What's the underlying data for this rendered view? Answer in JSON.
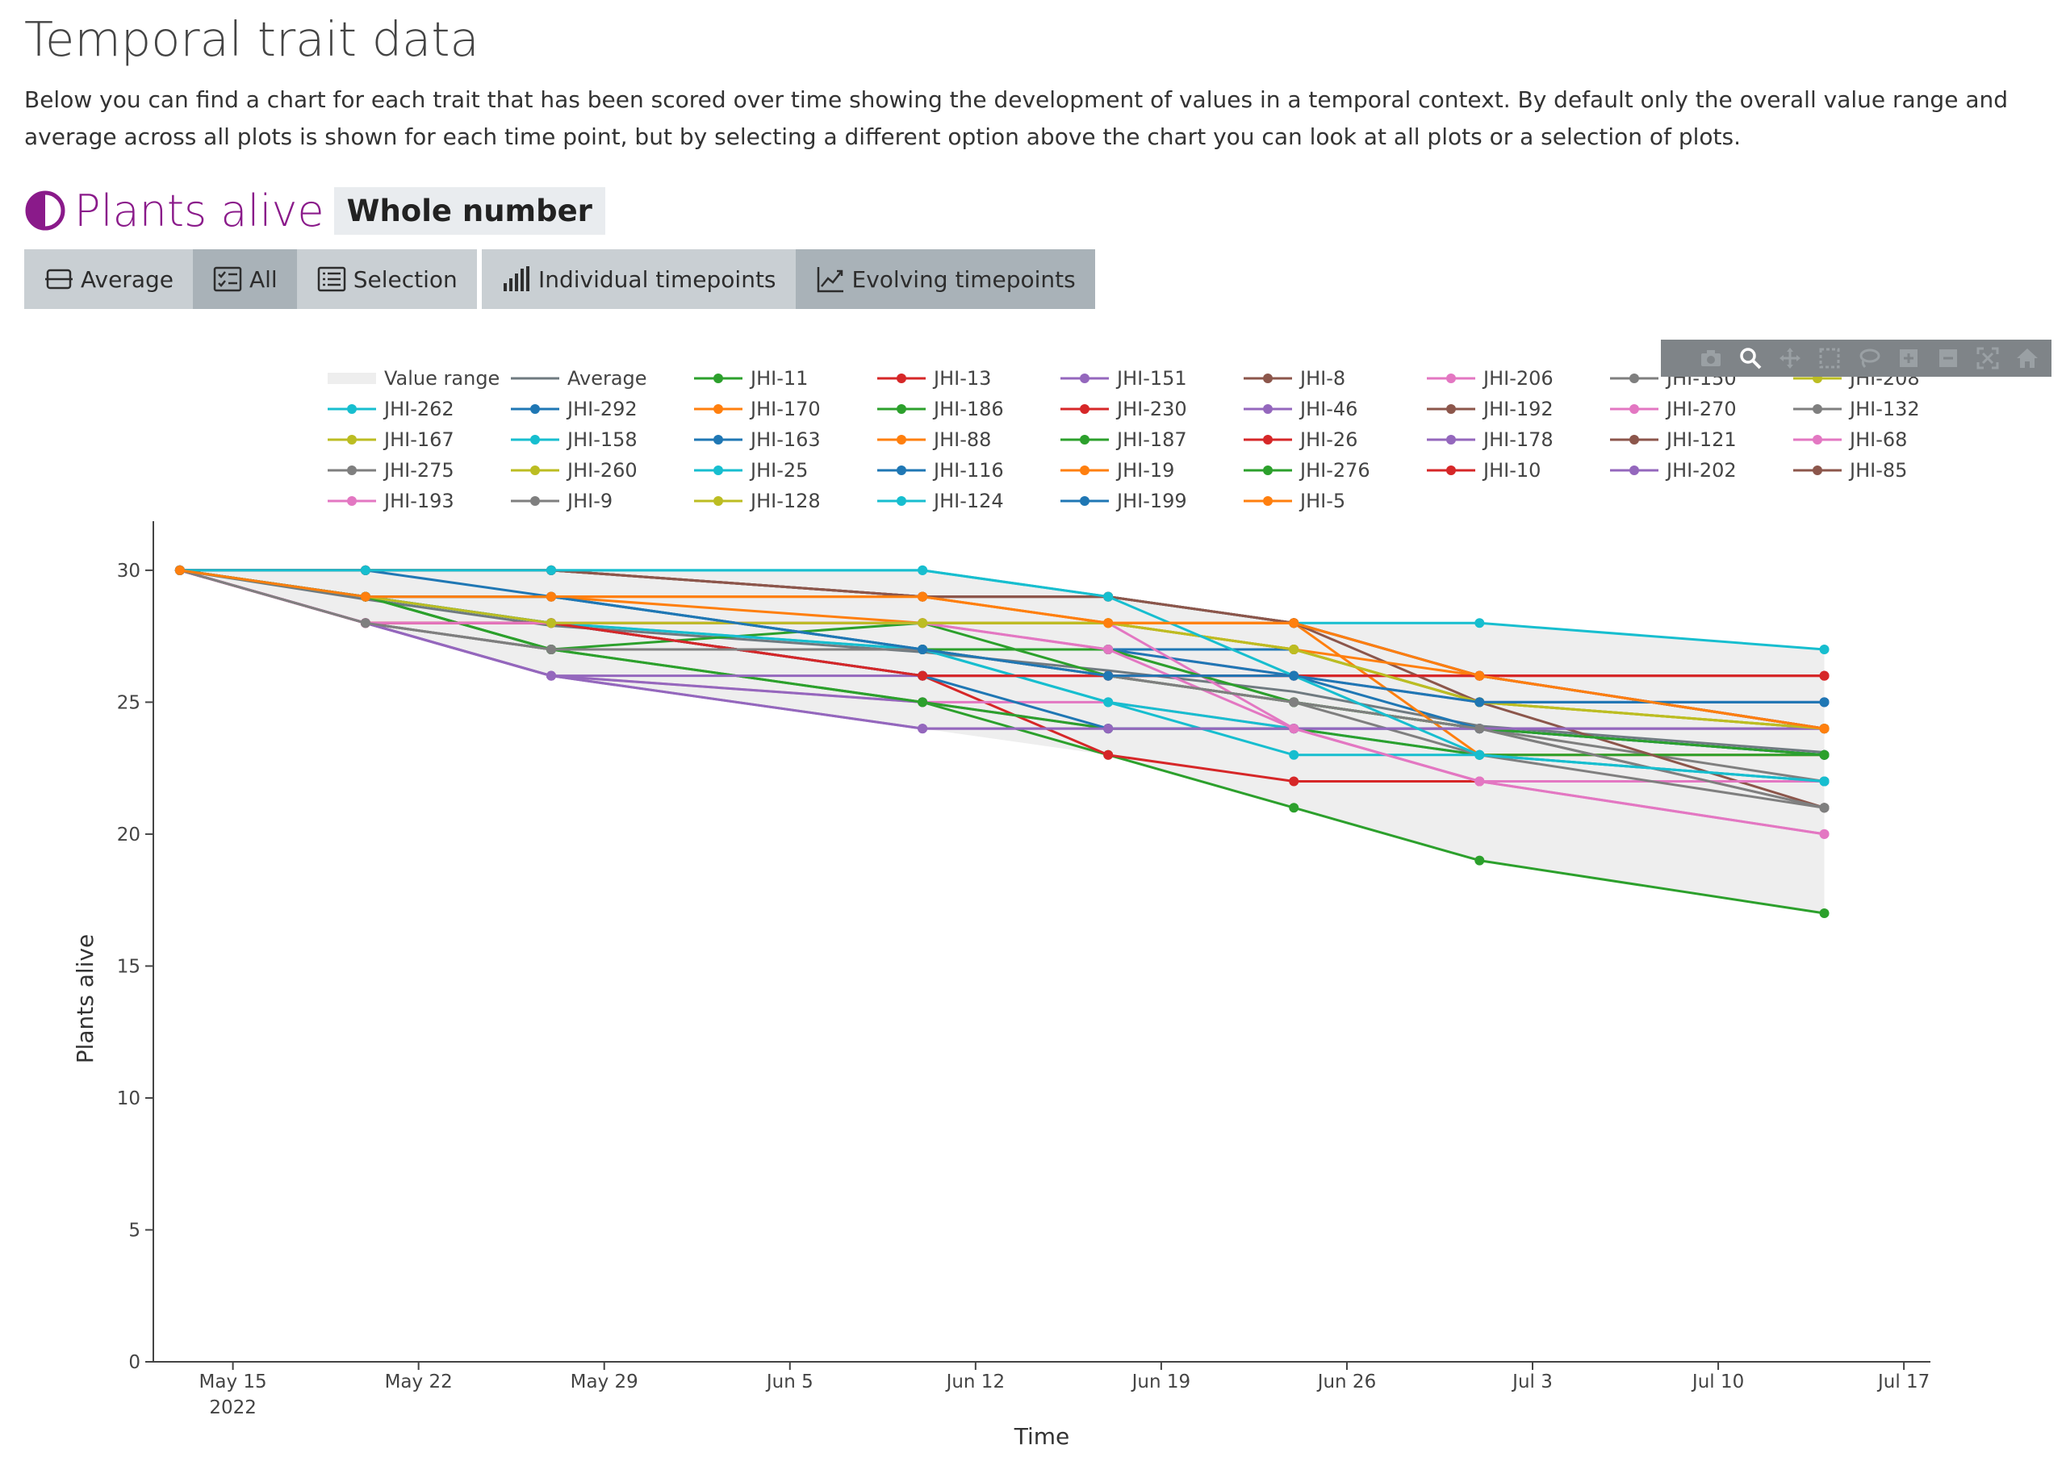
{
  "page": {
    "title": "Temporal trait data",
    "intro": "Below you can find a chart for each trait that has been scored over time showing the development of values in a temporal context. By default only the overall value range and average across all plots is shown for each time point, but by selecting a different option above the chart you can look at all plots or a selection of plots."
  },
  "trait": {
    "name": "Plants alive",
    "data_type": "Whole number",
    "icon": "half-circle-icon",
    "color": "#8a1a8a"
  },
  "toolbar": {
    "view_buttons": [
      {
        "label": "Average",
        "icon": "average-icon",
        "active": false
      },
      {
        "label": "All",
        "icon": "checklist-icon",
        "active": true
      },
      {
        "label": "Selection",
        "icon": "list-icon",
        "active": false
      }
    ],
    "time_buttons": [
      {
        "label": "Individual timepoints",
        "icon": "bar-chart-icon",
        "active": false
      },
      {
        "label": "Evolving timepoints",
        "icon": "line-chart-icon",
        "active": true
      }
    ]
  },
  "modebar": [
    "camera-icon",
    "zoom-icon",
    "pan-icon",
    "box-select-icon",
    "lasso-icon",
    "zoom-in-icon",
    "zoom-out-icon",
    "autoscale-icon",
    "home-icon"
  ],
  "chart_data": {
    "type": "line",
    "xlabel": "Time",
    "ylabel": "Plants alive",
    "ylim": [
      0,
      31.8
    ],
    "xlim": [
      "2022-05-12",
      "2022-07-18"
    ],
    "x_ticks": [
      "May 15",
      "May 22",
      "May 29",
      "Jun 5",
      "Jun 12",
      "Jun 19",
      "Jun 26",
      "Jul 3",
      "Jul 10",
      "Jul 17"
    ],
    "x_tick_year": "2022",
    "y_ticks": [
      "0",
      "5",
      "10",
      "15",
      "20",
      "25",
      "30"
    ],
    "legend_position": "top",
    "grid": false,
    "dates": [
      "2022-05-13",
      "2022-05-20",
      "2022-05-27",
      "2022-06-10",
      "2022-06-17",
      "2022-06-24",
      "2022-07-01",
      "2022-07-14"
    ],
    "value_range": {
      "name": "Value range",
      "color": "#eeeeee",
      "min": [
        30,
        28,
        26,
        24,
        23,
        21,
        19,
        17
      ],
      "max": [
        30,
        30,
        30,
        30,
        29,
        28,
        28,
        27
      ]
    },
    "average": {
      "name": "Average",
      "color": "#6f7a80",
      "values": [
        30,
        28.9,
        27.9,
        26.9,
        26.2,
        25.4,
        24.1,
        23.1
      ]
    },
    "series": [
      {
        "name": "JHI-11",
        "color": "#2ca02c",
        "values": [
          30,
          29,
          27,
          25,
          23,
          21,
          19,
          17
        ]
      },
      {
        "name": "JHI-13",
        "color": "#d62728",
        "values": [
          30,
          28,
          28,
          26,
          23,
          22,
          22,
          22
        ]
      },
      {
        "name": "JHI-151",
        "color": "#9467bd",
        "values": [
          30,
          28,
          26,
          24,
          24,
          24,
          24,
          24
        ]
      },
      {
        "name": "JHI-8",
        "color": "#8c564b",
        "values": [
          30,
          30,
          30,
          29,
          29,
          28,
          26,
          24
        ]
      },
      {
        "name": "JHI-206",
        "color": "#e377c2",
        "values": [
          30,
          28,
          26,
          25,
          25,
          24,
          22,
          20
        ]
      },
      {
        "name": "JHI-150",
        "color": "#7f7f7f",
        "values": [
          30,
          28,
          27,
          27,
          26,
          25,
          24,
          21
        ]
      },
      {
        "name": "JHI-208",
        "color": "#bcbd22",
        "values": [
          30,
          29,
          28,
          28,
          28,
          27,
          25,
          24
        ]
      },
      {
        "name": "JHI-262",
        "color": "#17becf",
        "values": [
          30,
          30,
          30,
          30,
          29,
          28,
          28,
          27
        ]
      },
      {
        "name": "JHI-292",
        "color": "#1f77b4",
        "values": [
          30,
          29,
          29,
          27,
          27,
          27,
          25,
          25
        ]
      },
      {
        "name": "JHI-170",
        "color": "#ff7f0e",
        "values": [
          30,
          29,
          29,
          29,
          28,
          28,
          26,
          24
        ]
      },
      {
        "name": "JHI-186",
        "color": "#2ca02c",
        "values": [
          30,
          29,
          27,
          28,
          26,
          25,
          24,
          23
        ]
      },
      {
        "name": "JHI-230",
        "color": "#d62728",
        "values": [
          30,
          28,
          28,
          26,
          26,
          26,
          26,
          26
        ]
      },
      {
        "name": "JHI-46",
        "color": "#9467bd",
        "values": [
          30,
          28,
          26,
          25,
          24,
          24,
          24,
          24
        ]
      },
      {
        "name": "JHI-192",
        "color": "#8c564b",
        "values": [
          30,
          30,
          30,
          29,
          29,
          28,
          26,
          24
        ]
      },
      {
        "name": "JHI-270",
        "color": "#e377c2",
        "values": [
          30,
          28,
          28,
          28,
          27,
          26,
          26,
          24
        ]
      },
      {
        "name": "JHI-132",
        "color": "#7f7f7f",
        "values": [
          30,
          28,
          27,
          27,
          26,
          25,
          24,
          22
        ]
      },
      {
        "name": "JHI-167",
        "color": "#bcbd22",
        "values": [
          30,
          29,
          28,
          28,
          28,
          27,
          25,
          24
        ]
      },
      {
        "name": "JHI-158",
        "color": "#17becf",
        "values": [
          30,
          29,
          28,
          27,
          25,
          24,
          23,
          22
        ]
      },
      {
        "name": "JHI-163",
        "color": "#1f77b4",
        "values": [
          30,
          30,
          29,
          27,
          27,
          26,
          24,
          23
        ]
      },
      {
        "name": "JHI-88",
        "color": "#ff7f0e",
        "values": [
          30,
          29,
          29,
          28,
          28,
          28,
          23,
          23
        ]
      },
      {
        "name": "JHI-187",
        "color": "#2ca02c",
        "values": [
          30,
          29,
          27,
          25,
          24,
          24,
          23,
          23
        ]
      },
      {
        "name": "JHI-26",
        "color": "#d62728",
        "values": [
          30,
          28,
          28,
          26,
          26,
          26,
          26,
          26
        ]
      },
      {
        "name": "JHI-178",
        "color": "#9467bd",
        "values": [
          30,
          28,
          26,
          26,
          26,
          26,
          25,
          25
        ]
      },
      {
        "name": "JHI-121",
        "color": "#8c564b",
        "values": [
          30,
          30,
          30,
          29,
          29,
          28,
          25,
          21
        ]
      },
      {
        "name": "JHI-68",
        "color": "#e377c2",
        "values": [
          30,
          28,
          28,
          28,
          28,
          24,
          22,
          22
        ]
      },
      {
        "name": "JHI-275",
        "color": "#7f7f7f",
        "values": [
          30,
          28,
          27,
          27,
          27,
          25,
          23,
          21
        ]
      },
      {
        "name": "JHI-260",
        "color": "#bcbd22",
        "values": [
          30,
          29,
          28,
          28,
          28,
          27,
          25,
          24
        ]
      },
      {
        "name": "JHI-25",
        "color": "#17becf",
        "values": [
          30,
          29,
          28,
          27,
          25,
          23,
          23,
          22
        ]
      },
      {
        "name": "JHI-116",
        "color": "#1f77b4",
        "values": [
          30,
          29,
          28,
          26,
          24,
          24,
          24,
          23
        ]
      },
      {
        "name": "JHI-19",
        "color": "#ff7f0e",
        "values": [
          30,
          29,
          29,
          29,
          28,
          27,
          26,
          24
        ]
      },
      {
        "name": "JHI-276",
        "color": "#2ca02c",
        "values": [
          30,
          29,
          27,
          27,
          27,
          25,
          24,
          23
        ]
      },
      {
        "name": "JHI-10",
        "color": "#d62728",
        "values": [
          30,
          28,
          28,
          26,
          26,
          26,
          26,
          26
        ]
      },
      {
        "name": "JHI-202",
        "color": "#9467bd",
        "values": [
          30,
          28,
          26,
          24,
          24,
          24,
          24,
          24
        ]
      },
      {
        "name": "JHI-85",
        "color": "#8c564b",
        "values": [
          30,
          30,
          30,
          29,
          29,
          28,
          26,
          24
        ]
      },
      {
        "name": "JHI-193",
        "color": "#e377c2",
        "values": [
          30,
          28,
          28,
          28,
          27,
          24,
          22,
          20
        ]
      },
      {
        "name": "JHI-9",
        "color": "#7f7f7f",
        "values": [
          30,
          28,
          27,
          27,
          26,
          25,
          24,
          21
        ]
      },
      {
        "name": "JHI-128",
        "color": "#bcbd22",
        "values": [
          30,
          29,
          28,
          28,
          28,
          27,
          25,
          24
        ]
      },
      {
        "name": "JHI-124",
        "color": "#17becf",
        "values": [
          30,
          30,
          30,
          30,
          29,
          26,
          23,
          22
        ]
      },
      {
        "name": "JHI-199",
        "color": "#1f77b4",
        "values": [
          30,
          29,
          29,
          27,
          26,
          26,
          25,
          25
        ]
      },
      {
        "name": "JHI-5",
        "color": "#ff7f0e",
        "values": [
          30,
          29,
          29,
          29,
          28,
          28,
          26,
          24
        ]
      }
    ]
  }
}
